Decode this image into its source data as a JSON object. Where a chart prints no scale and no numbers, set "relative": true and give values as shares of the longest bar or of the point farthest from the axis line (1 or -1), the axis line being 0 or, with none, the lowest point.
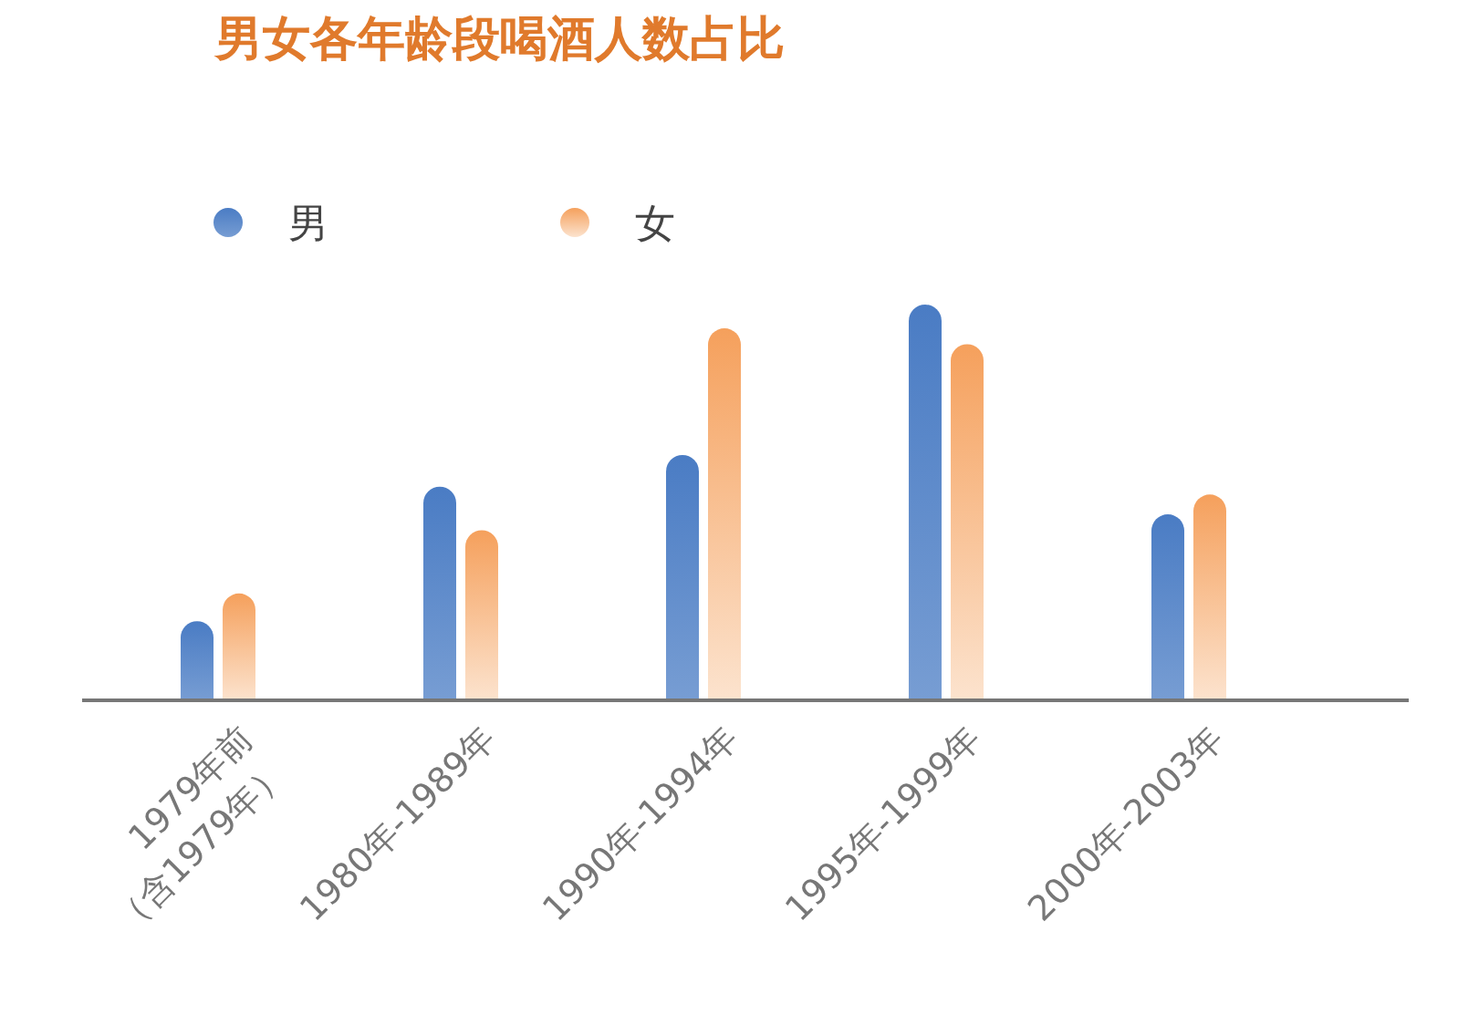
{
  "chart_data": {
    "type": "bar",
    "title": "男女各年龄段喝酒人数占比",
    "relative": true,
    "legend": "top left",
    "categories": [
      "1979年前\n（含1979年）",
      "1980年-1989年",
      "1990年-1994年",
      "1995年-1999年",
      "2000年-2003年"
    ],
    "series": [
      {
        "name": "男",
        "color": "#4a7cc4",
        "values": [
          0.2,
          0.54,
          0.62,
          1,
          0.47
        ]
      },
      {
        "name": "女",
        "color": "#f5a05c",
        "values": [
          0.27,
          0.43,
          0.94,
          0.9,
          0.52
        ]
      }
    ]
  }
}
